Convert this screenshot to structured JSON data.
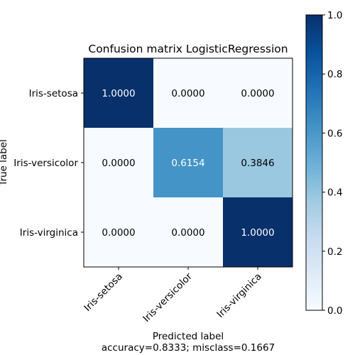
{
  "chart_data": {
    "type": "heatmap",
    "title": "Confusion matrix LogisticRegression",
    "xlabel": "Predicted label",
    "xlabel_line2": "accuracy=0.8333; misclass=0.1667",
    "ylabel": "True label",
    "x_categories": [
      "Iris-setosa",
      "Iris-versicolor",
      "Iris-virginica"
    ],
    "y_categories": [
      "Iris-setosa",
      "Iris-versicolor",
      "Iris-virginica"
    ],
    "matrix": [
      [
        1.0,
        0.0,
        0.0
      ],
      [
        0.0,
        0.6154,
        0.3846
      ],
      [
        0.0,
        0.0,
        1.0
      ]
    ],
    "cell_labels": [
      [
        "1.0000",
        "0.0000",
        "0.0000"
      ],
      [
        "0.0000",
        "0.6154",
        "0.3846"
      ],
      [
        "0.0000",
        "0.0000",
        "1.0000"
      ]
    ],
    "colormap": "Blues",
    "colorbar": {
      "range": [
        0.0,
        1.0
      ],
      "ticks": [
        0.0,
        0.2,
        0.4,
        0.6,
        0.8,
        1.0
      ],
      "tick_labels": [
        "0.0",
        "0.2",
        "0.4",
        "0.6",
        "0.8",
        "1.0"
      ]
    },
    "colors": {
      "low": "#f7fbff",
      "high": "#08306b"
    }
  }
}
